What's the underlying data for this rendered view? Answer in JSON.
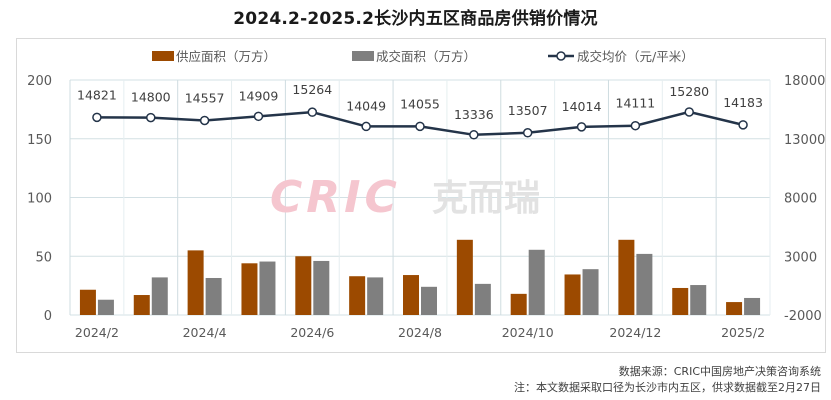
{
  "title": "2024.2-2025.2长沙内五区商品房供销价情况",
  "legend": {
    "supply": "供应面积（万方）",
    "deal": "成交面积（万方）",
    "price": "成交均价（元/平米）"
  },
  "colors": {
    "supply": "#9c4a00",
    "deal": "#7f7f7f",
    "price": "#243449",
    "grid": "#d3e0e4",
    "watermark_red": "#f5c6cf",
    "watermark_gray": "#e2e2e2"
  },
  "watermark": {
    "latin": "CRIC",
    "cn": "克而瑞"
  },
  "footnotes": {
    "source": "数据来源：CRIC中国房地产决策咨询系统",
    "note": "注：本文数据采取口径为长沙市内五区，供求数据截至2月27日"
  },
  "chart_data": {
    "type": "bar",
    "title": "2024.2-2025.2长沙内五区商品房供销价情况",
    "categories": [
      "2024/2",
      "2024/3",
      "2024/4",
      "2024/5",
      "2024/6",
      "2024/7",
      "2024/8",
      "2024/9",
      "2024/10",
      "2024/11",
      "2024/12",
      "2025/1",
      "2025/2"
    ],
    "shown_x_ticks": [
      "2024/2",
      "2024/4",
      "2024/6",
      "2024/8",
      "2024/10",
      "2024/12",
      "2025/2"
    ],
    "series": [
      {
        "name": "供应面积（万方）",
        "type": "bar",
        "axis": "left",
        "values": [
          21.5,
          17,
          55,
          44,
          50,
          33,
          34,
          64,
          18,
          34.5,
          64,
          23,
          11
        ]
      },
      {
        "name": "成交面积（万方）",
        "type": "bar",
        "axis": "left",
        "values": [
          13,
          32,
          31.5,
          45.5,
          46,
          32,
          24,
          26.5,
          55.5,
          39,
          52,
          25.5,
          14.5
        ]
      },
      {
        "name": "成交均价（元/平米）",
        "type": "line",
        "axis": "right",
        "values": [
          14821,
          14800,
          14557,
          14909,
          15264,
          14049,
          14055,
          13336,
          13507,
          14014,
          14111,
          15280,
          14183
        ],
        "data_labels": true
      }
    ],
    "left_axis": {
      "ylim": [
        0,
        200
      ],
      "ticks": [
        "0",
        "50",
        "100",
        "150",
        "200"
      ]
    },
    "right_axis": {
      "ylim": [
        -2000,
        18000
      ],
      "ticks": [
        "-2000",
        "3000",
        "8000",
        "13000",
        "18000"
      ]
    },
    "xlabel": "",
    "ylabel": "",
    "grid": true,
    "legend_position": "top"
  }
}
